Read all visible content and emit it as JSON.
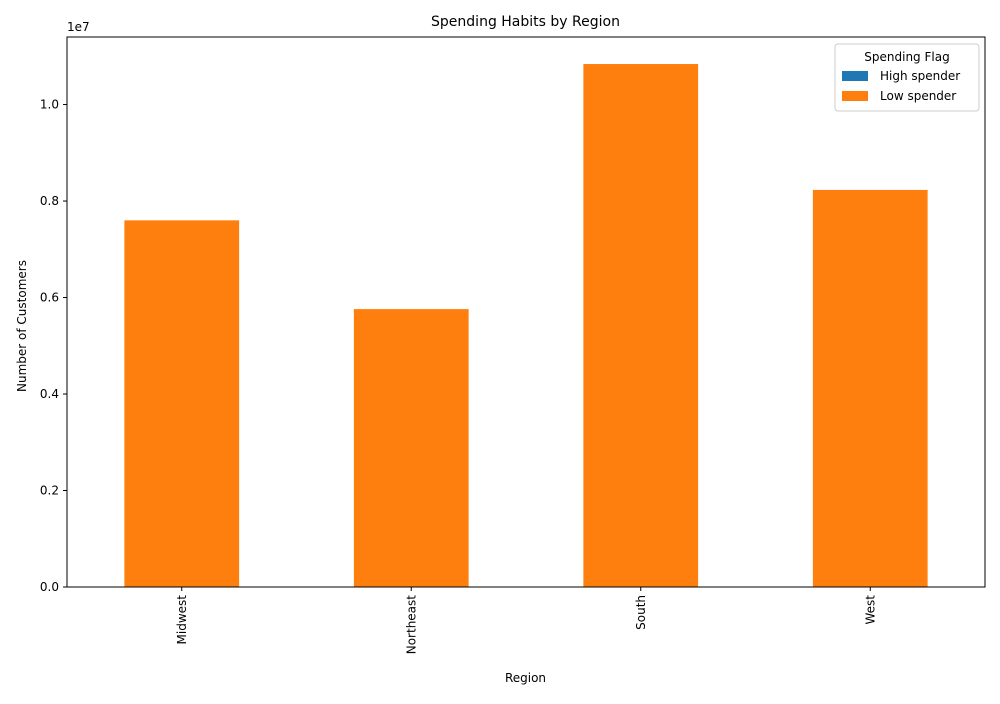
{
  "chart_data": {
    "type": "bar",
    "stacked": true,
    "title": "Spending Habits by Region",
    "xlabel": "Region",
    "ylabel": "Number of Customers",
    "y_offset_text": "1e7",
    "categories": [
      "Midwest",
      "Northeast",
      "South",
      "West"
    ],
    "series": [
      {
        "name": "High spender",
        "color": "#1f77b4",
        "values": [
          0,
          0,
          0,
          0
        ]
      },
      {
        "name": "Low spender",
        "color": "#ff7f0e",
        "values": [
          7600000,
          5760000,
          10840000,
          8230000
        ]
      }
    ],
    "ylim": [
      0,
      11400000
    ],
    "yticks": [
      0,
      2000000,
      4000000,
      6000000,
      8000000,
      10000000
    ],
    "ytick_labels": [
      "0.0",
      "0.2",
      "0.4",
      "0.6",
      "0.8",
      "1.0"
    ],
    "grid": false,
    "legend": {
      "title": "Spending Flag",
      "placement": "top-right"
    }
  }
}
